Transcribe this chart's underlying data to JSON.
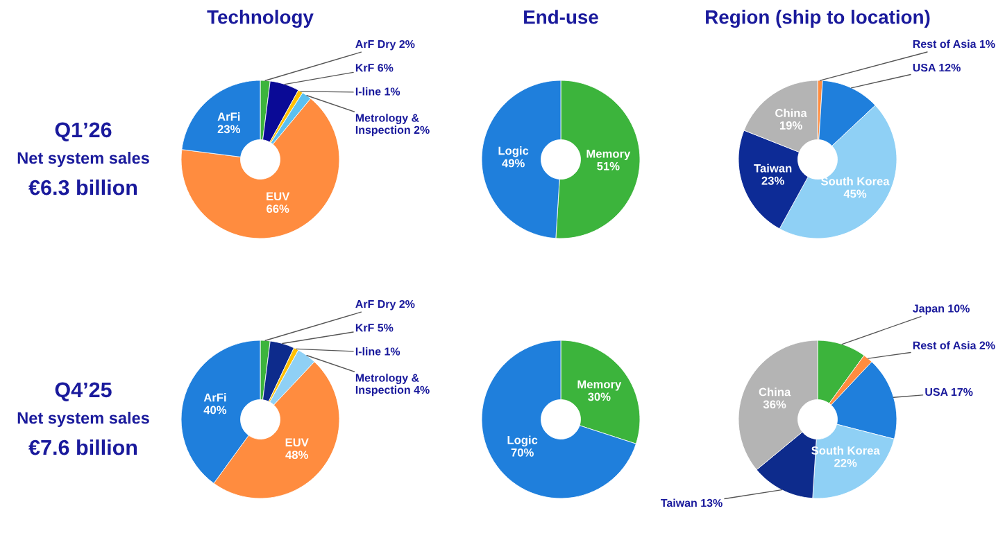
{
  "chart_data": [
    {
      "type": "other",
      "title": "Q1’26",
      "annotations": [
        "Net system sales",
        "€6.3 billion"
      ]
    },
    {
      "type": "donut",
      "title": "Technology",
      "categories": [
        "ArF Dry",
        "KrF",
        "I-line",
        "Metrology & Inspection",
        "EUV",
        "ArFi"
      ],
      "values": [
        2,
        6,
        1,
        2,
        66,
        23
      ],
      "colors": [
        "#3cb43c",
        "#0a0a96",
        "#ffc000",
        "#5bc0f0",
        "#ff8c3f",
        "#1f7fdc"
      ],
      "value_labels": [
        "2%",
        "6%",
        "1%",
        "2%",
        "66%",
        "23%"
      ]
    },
    {
      "type": "donut",
      "title": "End-use",
      "categories": [
        "Memory",
        "Logic"
      ],
      "values": [
        51,
        49
      ],
      "colors": [
        "#3cb43c",
        "#1f7fdc"
      ],
      "value_labels": [
        "51%",
        "49%"
      ]
    },
    {
      "type": "donut",
      "title": "Region (ship to location)",
      "categories": [
        "Rest of Asia",
        "USA",
        "South Korea",
        "Taiwan",
        "China"
      ],
      "values": [
        1,
        12,
        45,
        23,
        19
      ],
      "colors": [
        "#ff8c3f",
        "#1f7fdc",
        "#8fd0f5",
        "#0d2b96",
        "#b4b4b4"
      ],
      "value_labels": [
        "1%",
        "12%",
        "45%",
        "23%",
        "19%"
      ]
    },
    {
      "type": "other",
      "title": "Q4’25",
      "annotations": [
        "Net system sales",
        "€7.6 billion"
      ]
    },
    {
      "type": "donut",
      "categories": [
        "ArF Dry",
        "KrF",
        "I-line",
        "Metrology & Inspection",
        "EUV",
        "ArFi"
      ],
      "values": [
        2,
        5,
        1,
        4,
        48,
        40
      ],
      "colors": [
        "#3cb43c",
        "#0d2b8c",
        "#ffc000",
        "#8fd0f5",
        "#ff8c3f",
        "#1f7fdc"
      ],
      "value_labels": [
        "2%",
        "5%",
        "1%",
        "4%",
        "48%",
        "40%"
      ]
    },
    {
      "type": "donut",
      "categories": [
        "Memory",
        "Logic"
      ],
      "values": [
        30,
        70
      ],
      "colors": [
        "#3cb43c",
        "#1f7fdc"
      ],
      "value_labels": [
        "30%",
        "70%"
      ]
    },
    {
      "type": "donut",
      "categories": [
        "Japan",
        "Rest of Asia",
        "USA",
        "South Korea",
        "Taiwan",
        "China"
      ],
      "values": [
        10,
        2,
        17,
        22,
        13,
        36
      ],
      "colors": [
        "#3cb43c",
        "#ff8c3f",
        "#1f7fdc",
        "#8fd0f5",
        "#0d2b8c",
        "#b4b4b4"
      ],
      "value_labels": [
        "10%",
        "2%",
        "17%",
        "22%",
        "13%",
        "36%"
      ]
    }
  ]
}
